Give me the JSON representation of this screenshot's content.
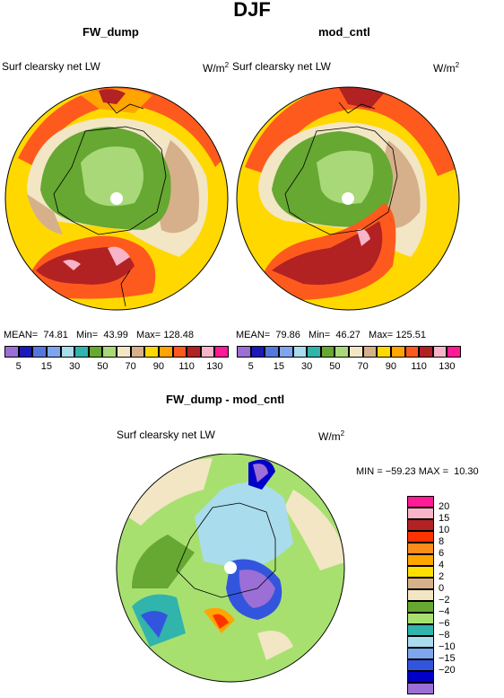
{
  "title": "DJF",
  "panels": [
    {
      "title": "FW_dump",
      "label": "Surf clearsky net LW",
      "unit": "W/m",
      "unit_sup": "2",
      "stats": {
        "mean_label": "MEAN=",
        "mean": "74.81",
        "min_label": "Min=",
        "min": "43.99",
        "max_label": "Max=",
        "max": "128.48"
      }
    },
    {
      "title": "mod_cntl",
      "label": "Surf clearsky net LW",
      "unit": "W/m",
      "unit_sup": "2",
      "stats": {
        "mean_label": "MEAN=",
        "mean": "79.86",
        "min_label": "Min=",
        "min": "46.27",
        "max_label": "Max=",
        "max": "125.51"
      }
    }
  ],
  "top_colorbar": {
    "colors": [
      "#9b6fd6",
      "#1a1ab8",
      "#5577dd",
      "#7ea6ee",
      "#a9dcec",
      "#30b4ac",
      "#66a832",
      "#a8d878",
      "#f2e6c4",
      "#d6b08a",
      "#ffd800",
      "#ffa500",
      "#ff5a1e",
      "#b22222",
      "#f8b4c8",
      "#ff1a96"
    ],
    "ticks": [
      "5",
      "15",
      "30",
      "50",
      "70",
      "90",
      "110",
      "130"
    ]
  },
  "diff": {
    "title": "FW_dump - mod_cntl",
    "label": "Surf clearsky net LW",
    "unit": "W/m",
    "unit_sup": "2",
    "stats": "MIN = −59.23 MAX =  10.30",
    "colorbar": {
      "colors": [
        "#ff1a96",
        "#f8b4c8",
        "#b22222",
        "#ff3300",
        "#ff8c1a",
        "#ffa500",
        "#ffe000",
        "#d6b08a",
        "#f2e6c4",
        "#66a832",
        "#a8e070",
        "#30b4ac",
        "#a9dcec",
        "#7ea6ee",
        "#3355dd",
        "#0000c8",
        "#9b6fd6"
      ],
      "ticks": [
        "20",
        "15",
        "10",
        "8",
        "6",
        "4",
        "2",
        "0",
        "−2",
        "−4",
        "−6",
        "−8",
        "−10",
        "−15",
        "−20"
      ]
    }
  }
}
